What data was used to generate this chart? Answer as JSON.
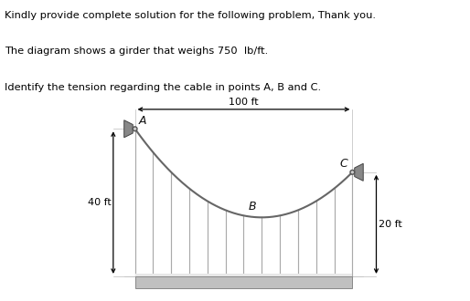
{
  "text_lines": [
    "Kindly provide complete solution for the following problem, Thank you.",
    "The diagram shows a girder that weighs 750  lb/ft.",
    "Identify the tension regarding the cable in points A, B and C."
  ],
  "bg_color": "#ffffff",
  "diagram": {
    "A_x": 0.0,
    "A_y": 40.0,
    "B_x": 50.0,
    "B_y": 0.0,
    "C_x": 100.0,
    "C_y": 20.0,
    "cable_a": 0.012,
    "cable_b": -1.4,
    "cable_c": 40.0,
    "girder_top_y": -28.0,
    "girder_bot_y": -33.5,
    "hanger_count": 13,
    "xlim": [
      -15,
      120
    ],
    "ylim": [
      -38,
      55
    ],
    "text_color": "#000000",
    "cable_color": "#666666",
    "hanger_color": "#aaaaaa",
    "girder_face": "#c0c0c0",
    "girder_edge": "#888888",
    "wall_face": "#888888",
    "wall_edge": "#444444",
    "dim_color": "#000000",
    "label_color": "#111111",
    "ref_line_color": "#cccccc",
    "font_size_text": 8.2,
    "font_size_dim": 8.0,
    "font_size_label": 9.0
  }
}
